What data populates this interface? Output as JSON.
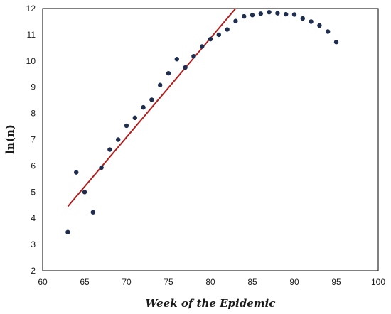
{
  "chart_data": {
    "type": "scatter",
    "title": "",
    "xlabel": "Week of the Epidemic",
    "ylabel": "ln(n)",
    "xlim": [
      60,
      100
    ],
    "ylim": [
      2,
      12
    ],
    "x_ticks": [
      60,
      65,
      70,
      75,
      80,
      85,
      90,
      95,
      100
    ],
    "y_ticks": [
      2,
      3,
      4,
      5,
      6,
      7,
      8,
      9,
      10,
      11,
      12
    ],
    "grid": false,
    "legend": "none",
    "series": [
      {
        "kind": "points",
        "color": "#1f2d4f",
        "x": [
          63,
          64,
          65,
          66,
          67,
          68,
          69,
          70,
          71,
          72,
          73,
          74,
          75,
          76,
          77,
          78,
          79,
          80,
          81,
          82,
          83,
          84,
          85,
          86,
          87,
          88,
          89,
          90,
          91,
          92,
          93,
          94,
          95
        ],
        "y": [
          3.47,
          5.75,
          5.0,
          4.23,
          5.93,
          6.62,
          7.0,
          7.53,
          7.83,
          8.23,
          8.52,
          9.08,
          9.53,
          10.07,
          9.75,
          10.18,
          10.55,
          10.83,
          11.0,
          11.2,
          11.52,
          11.7,
          11.75,
          11.8,
          11.86,
          11.82,
          11.78,
          11.77,
          11.62,
          11.5,
          11.35,
          11.12,
          10.72
        ]
      },
      {
        "kind": "trend-line",
        "color": "#b01e1e",
        "x": [
          63,
          83
        ],
        "y": [
          4.45,
          12.0
        ]
      }
    ]
  }
}
